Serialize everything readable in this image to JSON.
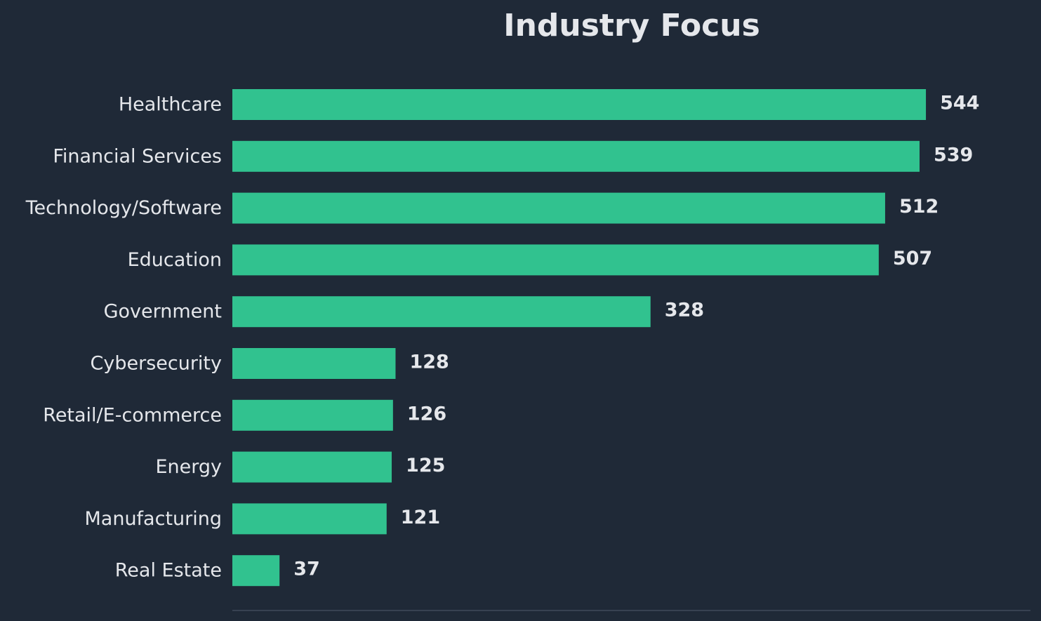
{
  "chart_data": {
    "type": "bar",
    "orientation": "horizontal",
    "title": "Industry Focus",
    "xlabel": "",
    "ylabel": "",
    "categories": [
      "Healthcare",
      "Financial Services",
      "Technology/Software",
      "Education",
      "Government",
      "Cybersecurity",
      "Retail/E-commerce",
      "Energy",
      "Manufacturing",
      "Real Estate"
    ],
    "values": [
      544,
      539,
      512,
      507,
      328,
      128,
      126,
      125,
      121,
      37
    ],
    "xlim": [
      0,
      626
    ],
    "grid": false,
    "legend": "none",
    "colors": {
      "background": "#1f2937",
      "bar": "#31c28f",
      "text": "#e5e7eb",
      "axis": "#374151"
    }
  }
}
